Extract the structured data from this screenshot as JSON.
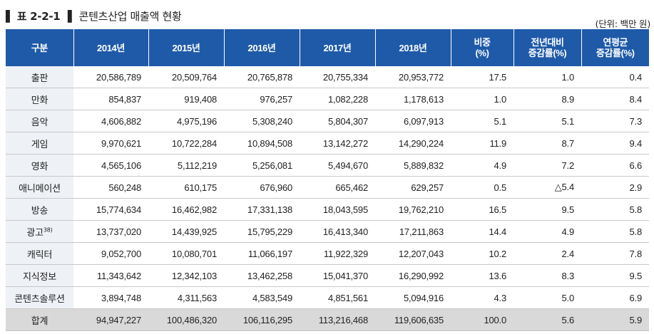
{
  "title": {
    "marker_left": "▌",
    "number": "표 2-2-1",
    "marker_right": "▌",
    "text": "콘텐츠산업 매출액 현황"
  },
  "unit": "(단위: 백만 원)",
  "table": {
    "headers": [
      {
        "line1": "구분",
        "line2": ""
      },
      {
        "line1": "2014년",
        "line2": ""
      },
      {
        "line1": "2015년",
        "line2": ""
      },
      {
        "line1": "2016년",
        "line2": ""
      },
      {
        "line1": "2017년",
        "line2": ""
      },
      {
        "line1": "2018년",
        "line2": ""
      },
      {
        "line1": "비중",
        "line2": "(%)"
      },
      {
        "line1": "전년대비",
        "line2": "증감률(%)"
      },
      {
        "line1": "연평균",
        "line2": "증감률(%)"
      }
    ],
    "rows": [
      {
        "category": "출판",
        "note": "",
        "values": [
          "20,586,789",
          "20,509,764",
          "20,765,878",
          "20,755,334",
          "20,953,772",
          "17.5",
          "1.0",
          "0.4"
        ]
      },
      {
        "category": "만화",
        "note": "",
        "values": [
          "854,837",
          "919,408",
          "976,257",
          "1,082,228",
          "1,178,613",
          "1.0",
          "8.9",
          "8.4"
        ]
      },
      {
        "category": "음악",
        "note": "",
        "values": [
          "4,606,882",
          "4,975,196",
          "5,308,240",
          "5,804,307",
          "6,097,913",
          "5.1",
          "5.1",
          "7.3"
        ]
      },
      {
        "category": "게임",
        "note": "",
        "values": [
          "9,970,621",
          "10,722,284",
          "10,894,508",
          "13,142,272",
          "14,290,224",
          "11.9",
          "8.7",
          "9.4"
        ]
      },
      {
        "category": "영화",
        "note": "",
        "values": [
          "4,565,106",
          "5,112,219",
          "5,256,081",
          "5,494,670",
          "5,889,832",
          "4.9",
          "7.2",
          "6.6"
        ]
      },
      {
        "category": "애니메이션",
        "note": "",
        "values": [
          "560,248",
          "610,175",
          "676,960",
          "665,462",
          "629,257",
          "0.5",
          "△5.4",
          "2.9"
        ]
      },
      {
        "category": "방송",
        "note": "",
        "values": [
          "15,774,634",
          "16,462,982",
          "17,331,138",
          "18,043,595",
          "19,762,210",
          "16.5",
          "9.5",
          "5.8"
        ]
      },
      {
        "category": "광고",
        "note": "38)",
        "values": [
          "13,737,020",
          "14,439,925",
          "15,795,229",
          "16,413,340",
          "17,211,863",
          "14.4",
          "4.9",
          "5.8"
        ]
      },
      {
        "category": "캐릭터",
        "note": "",
        "values": [
          "9,052,700",
          "10,080,701",
          "11,066,197",
          "11,922,329",
          "12,207,043",
          "10.2",
          "2.4",
          "7.8"
        ]
      },
      {
        "category": "지식정보",
        "note": "",
        "values": [
          "11,343,642",
          "12,342,103",
          "13,462,258",
          "15,041,370",
          "16,290,992",
          "13.6",
          "8.3",
          "9.5"
        ]
      },
      {
        "category": "콘텐츠솔루션",
        "note": "",
        "values": [
          "3,894,748",
          "4,311,563",
          "4,583,549",
          "4,851,561",
          "5,094,916",
          "4.3",
          "5.0",
          "6.9"
        ]
      }
    ],
    "total": {
      "category": "합계",
      "values": [
        "94,947,227",
        "100,486,320",
        "106,116,295",
        "113,216,468",
        "119,606,635",
        "100.0",
        "5.6",
        "5.9"
      ]
    }
  },
  "colors": {
    "header_bg": "#1f5aa8",
    "header_text": "#ffffff",
    "category_bg": "#eef1f6",
    "total_bg": "#d9d9d9"
  }
}
